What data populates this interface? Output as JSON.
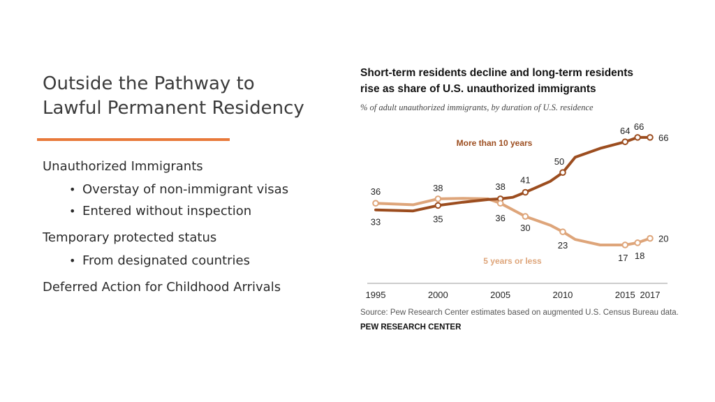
{
  "slide": {
    "title_lines": [
      "Outside the Pathway to",
      "Lawful Permanent Residency"
    ],
    "accent_color": "#e8793a",
    "items": [
      {
        "text": "Unauthorized Immigrants",
        "bullets": [
          "Overstay of non-immigrant visas",
          "Entered without inspection"
        ]
      },
      {
        "text": "Temporary protected status",
        "bullets": [
          "From designated countries"
        ]
      },
      {
        "text": "Deferred Action for Childhood Arrivals",
        "bullets": []
      }
    ],
    "bullet_glyph": "•"
  },
  "chart_data": {
    "type": "line",
    "title_lines": [
      "Short-term residents decline and long-term residents",
      "rise as share of U.S. unauthorized immigrants"
    ],
    "subtitle": "% of adult unauthorized immigrants, by duration of U.S. residence",
    "xlabel": "",
    "ylabel": "",
    "x_ticks": [
      1995,
      2000,
      2005,
      2010,
      2015,
      2017
    ],
    "xlim": [
      1995,
      2017
    ],
    "ylim": [
      10,
      72
    ],
    "grid": false,
    "series": [
      {
        "name": "More than 10 years",
        "color": "#9c4d1f",
        "points": [
          {
            "x": 1995,
            "y": 33
          },
          {
            "x": 1998,
            "y": 32.5
          },
          {
            "x": 2000,
            "y": 35
          },
          {
            "x": 2002,
            "y": 36.5
          },
          {
            "x": 2004,
            "y": 37.7
          },
          {
            "x": 2005,
            "y": 38
          },
          {
            "x": 2006,
            "y": 38.7
          },
          {
            "x": 2007,
            "y": 41
          },
          {
            "x": 2009,
            "y": 46
          },
          {
            "x": 2010,
            "y": 50
          },
          {
            "x": 2011,
            "y": 57
          },
          {
            "x": 2013,
            "y": 61
          },
          {
            "x": 2015,
            "y": 64
          },
          {
            "x": 2016,
            "y": 66
          },
          {
            "x": 2017,
            "y": 66
          }
        ],
        "markers": [
          {
            "x": 2005,
            "y": 38,
            "label": "38"
          },
          {
            "x": 2007,
            "y": 41,
            "label": "41"
          },
          {
            "x": 2010,
            "y": 50,
            "label": "50"
          },
          {
            "x": 2015,
            "y": 64,
            "label": "64"
          },
          {
            "x": 2016,
            "y": 66,
            "label": "66"
          },
          {
            "x": 2017,
            "y": 66,
            "label": "66"
          }
        ],
        "start_label": "33",
        "start_marker": false
      },
      {
        "name": "5 years or less",
        "color": "#dea57a",
        "points": [
          {
            "x": 1995,
            "y": 36
          },
          {
            "x": 1998,
            "y": 35.3
          },
          {
            "x": 2000,
            "y": 38
          },
          {
            "x": 2002,
            "y": 38.2
          },
          {
            "x": 2004,
            "y": 38
          },
          {
            "x": 2005,
            "y": 36
          },
          {
            "x": 2007,
            "y": 30
          },
          {
            "x": 2009,
            "y": 26
          },
          {
            "x": 2010,
            "y": 23
          },
          {
            "x": 2011,
            "y": 19.5
          },
          {
            "x": 2013,
            "y": 17
          },
          {
            "x": 2015,
            "y": 17
          },
          {
            "x": 2016,
            "y": 18
          },
          {
            "x": 2017,
            "y": 20
          }
        ],
        "markers": [
          {
            "x": 2000,
            "y": 38,
            "label": "38"
          },
          {
            "x": 2005,
            "y": 36,
            "label": "36"
          },
          {
            "x": 2007,
            "y": 30,
            "label": "30"
          },
          {
            "x": 2010,
            "y": 23,
            "label": "23"
          },
          {
            "x": 2015,
            "y": 17,
            "label": "17"
          },
          {
            "x": 2016,
            "y": 18,
            "label": "18"
          },
          {
            "x": 2017,
            "y": 20,
            "label": "20"
          }
        ],
        "start_label": "36",
        "start_marker": true,
        "extra_marker": {
          "x": 2000,
          "y": 35,
          "label": "35",
          "series_color_of": "More than 10 years"
        }
      }
    ],
    "series_labels": [
      "More than 10 years",
      "5 years or less"
    ],
    "source": "Source: Pew Research Center estimates based on augmented U.S. Census Bureau data.",
    "brand": "PEW RESEARCH CENTER",
    "text_color": "#222222",
    "axis_color": "#999999",
    "source_color": "#555555"
  }
}
